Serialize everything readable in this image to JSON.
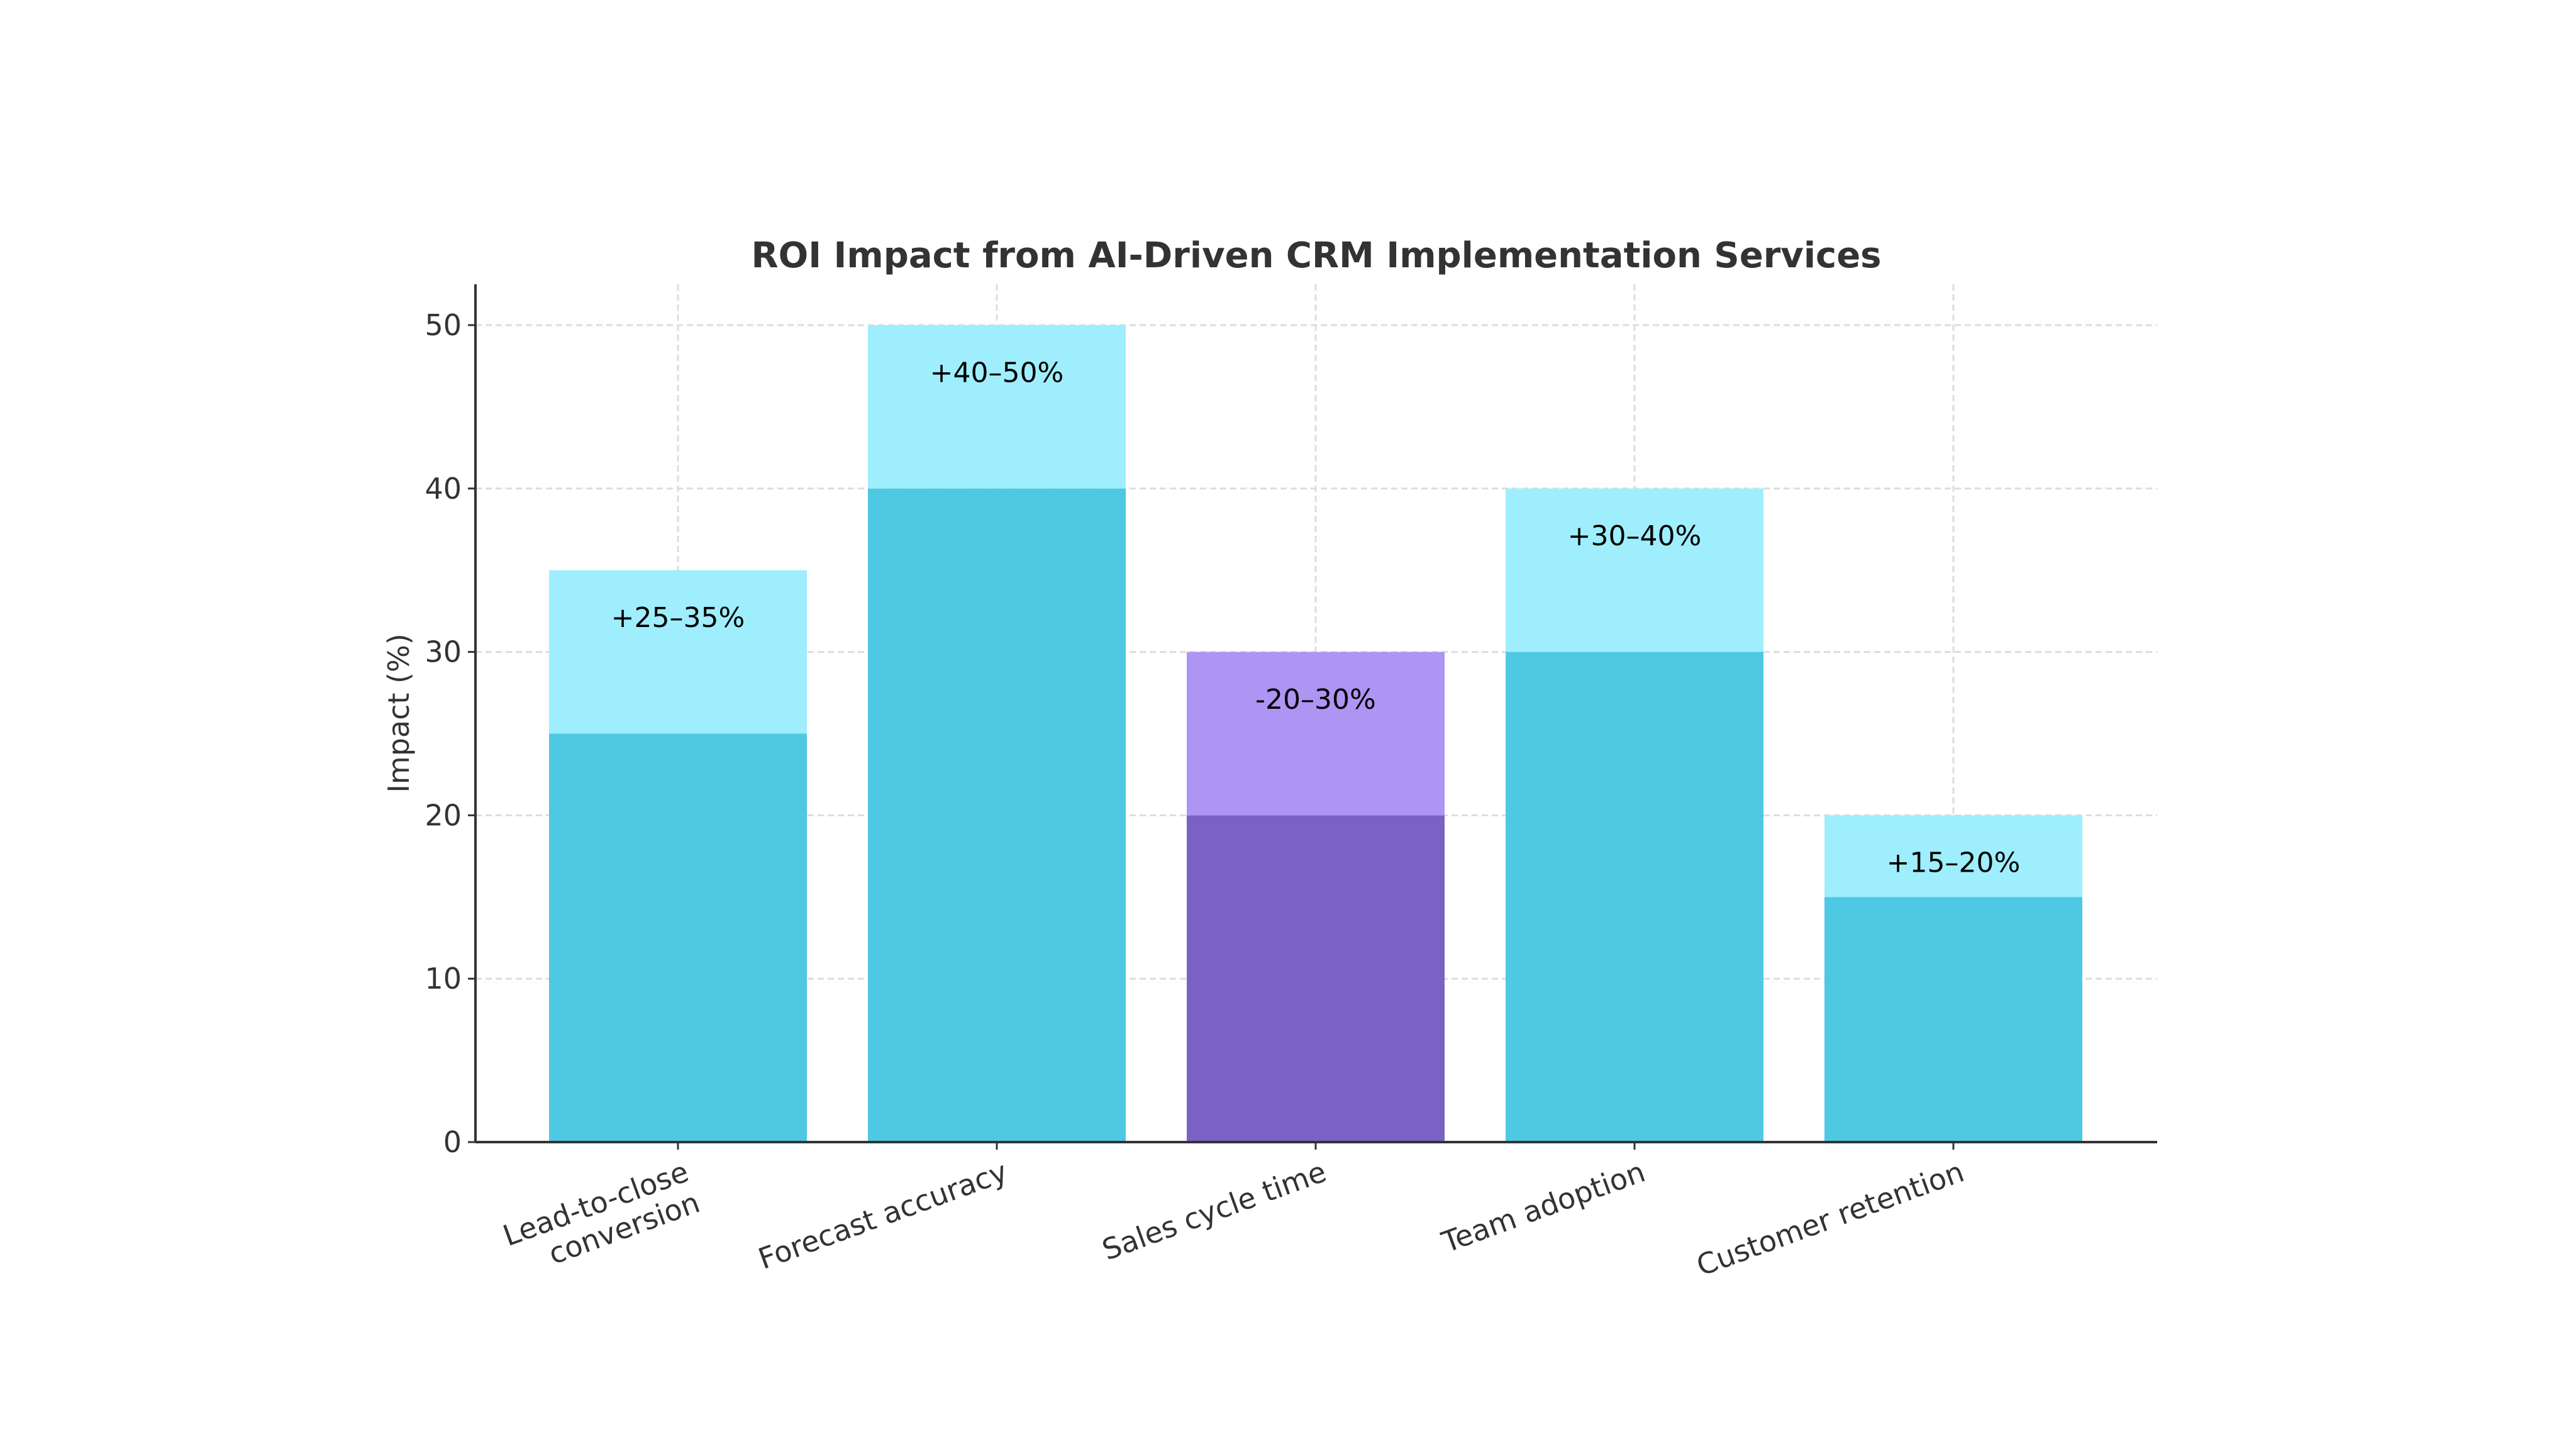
{
  "chart_data": {
    "type": "bar",
    "stacked": true,
    "title": "ROI Impact from AI-Driven CRM Implementation Services",
    "xlabel": "",
    "ylabel": "Impact (%)",
    "ylim": [
      0,
      52.5
    ],
    "yticks": [
      0,
      10,
      20,
      30,
      40,
      50
    ],
    "grid": true,
    "categories": [
      "Lead-to-close\nconversion",
      "Forecast accuracy",
      "Sales cycle time",
      "Team adoption",
      "Customer retention"
    ],
    "low_values": [
      25,
      40,
      20,
      30,
      15
    ],
    "high_values": [
      35,
      50,
      30,
      40,
      20
    ],
    "labels": [
      "+25–35%",
      "+40–50%",
      "-20–30%",
      "+30–40%",
      "+15–20%"
    ],
    "colors": {
      "base": "#4FC8E3",
      "range": "#9FEEFD",
      "highlight_base": "#7B61C4",
      "highlight_range": "#AE94F3"
    },
    "highlight_index": 2
  }
}
